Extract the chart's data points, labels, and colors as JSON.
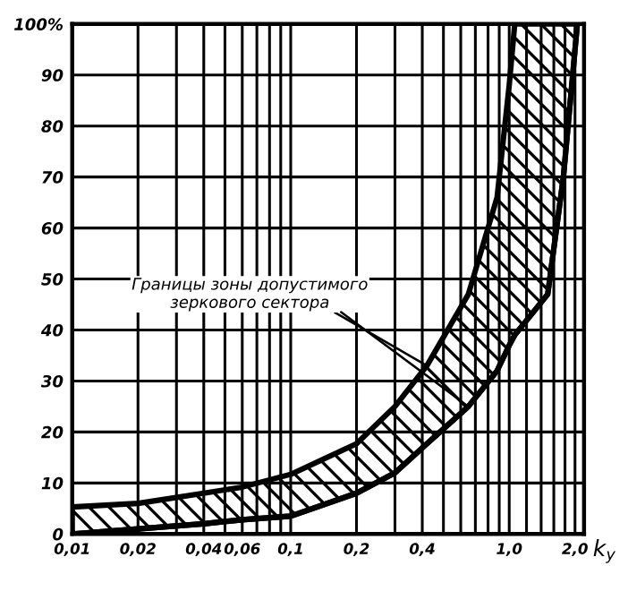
{
  "chart_data": {
    "type": "line",
    "xlabel": "k$_{у}$",
    "x": [
      0.01,
      0.02,
      0.04,
      0.06,
      0.1,
      0.2,
      0.3,
      0.42,
      0.65,
      0.88,
      1.0,
      1.06,
      1.5,
      1.77,
      2.05
    ],
    "series": [
      {
        "color": "#000000",
        "values": [
          0,
          1,
          2,
          2.8,
          3.5,
          8,
          12,
          17.7,
          25,
          32,
          37,
          39,
          47,
          70,
          100
        ],
        "lower": [
          0,
          1,
          2,
          2.8,
          3.5,
          8,
          12,
          17.7,
          25,
          32,
          37,
          39,
          47,
          70,
          100
        ],
        "upper": [
          5.3,
          6,
          8,
          9.2,
          11.7,
          17.7,
          25,
          33,
          47,
          66,
          88,
          100,
          100,
          100,
          100
        ]
      }
    ],
    "annotations": [
      {
        "text": "Границы зоны допустимого\nзеркового сектора",
        "x": 0.42,
        "y": 33
      }
    ],
    "log": "x",
    "xlim": [
      0.01,
      2.2
    ],
    "ylim": [
      0,
      100
    ],
    "xticks": [
      {
        "value": 0.01,
        "label": "0,01"
      },
      {
        "value": 0.02,
        "label": "0,02"
      },
      {
        "value": 0.03,
        "label": null
      },
      {
        "value": 0.04,
        "label": "0,04"
      },
      {
        "value": 0.05,
        "label": null
      },
      {
        "value": 0.06,
        "label": "0,06"
      },
      {
        "value": 0.07,
        "label": null
      },
      {
        "value": 0.08,
        "label": null
      },
      {
        "value": 0.09,
        "label": null
      },
      {
        "value": 0.1,
        "label": "0,1"
      },
      {
        "value": 0.2,
        "label": "0,2"
      },
      {
        "value": 0.3,
        "label": null
      },
      {
        "value": 0.4,
        "label": "0,4"
      },
      {
        "value": 0.5,
        "label": null
      },
      {
        "value": 0.6,
        "label": null
      },
      {
        "value": 0.7,
        "label": null
      },
      {
        "value": 0.8,
        "label": null
      },
      {
        "value": 0.9,
        "label": null
      },
      {
        "value": 1.0,
        "label": "1,0"
      },
      {
        "value": 1.2,
        "label": null
      },
      {
        "value": 1.4,
        "label": null
      },
      {
        "value": 1.6,
        "label": null
      },
      {
        "value": 1.8,
        "label": null
      },
      {
        "value": 2.0,
        "label": "2,0"
      }
    ],
    "yticks": [
      0,
      10,
      20,
      30,
      40,
      50,
      60,
      70,
      80,
      90,
      {
        "value": 100,
        "label": "100%"
      }
    ],
    "grid": true,
    "marker": "none",
    "line_style": "solid"
  }
}
